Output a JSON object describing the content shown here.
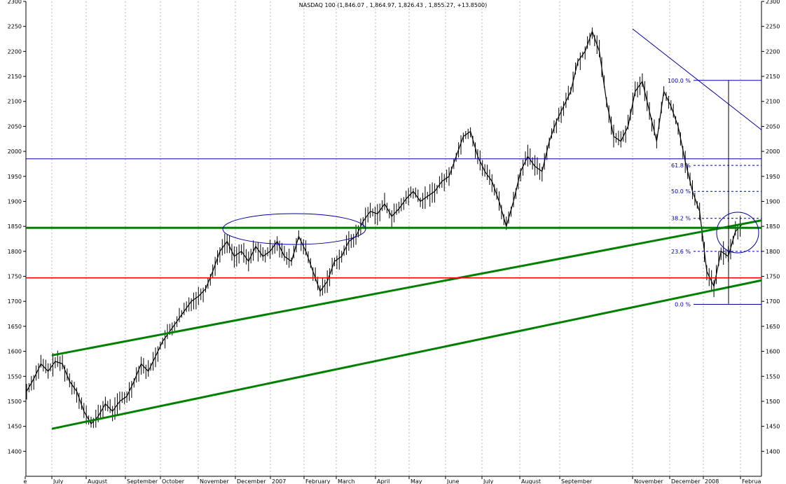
{
  "chart_data": {
    "type": "line",
    "title": "NASDAQ 100 (1,846.07 , 1,864.97, 1,826.43 , 1,855.27, +13.8500)",
    "xlabel": "",
    "ylabel": "",
    "ylim": [
      1350,
      2300
    ],
    "grid": true,
    "y_ticks": [
      1400,
      1450,
      1500,
      1550,
      1600,
      1650,
      1700,
      1750,
      1800,
      1850,
      1900,
      1950,
      2000,
      2050,
      2100,
      2150,
      2200,
      2250,
      2300
    ],
    "x_ticks": [
      "e",
      "July",
      "August",
      "September",
      "October",
      "November",
      "December",
      "2007",
      "February",
      "March",
      "April",
      "May",
      "June",
      "July",
      "August",
      "September",
      "November",
      "December",
      "2008",
      "Februa"
    ],
    "series": [
      {
        "values": [
          1520,
          1545,
          1575,
          1560,
          1580,
          1575,
          1540,
          1520,
          1480,
          1455,
          1470,
          1495,
          1480,
          1500,
          1510,
          1540,
          1575,
          1560,
          1590,
          1620,
          1640,
          1660,
          1680,
          1700,
          1710,
          1725,
          1760,
          1800,
          1820,
          1790,
          1800,
          1780,
          1810,
          1790,
          1800,
          1820,
          1790,
          1780,
          1830,
          1800,
          1760,
          1720,
          1740,
          1780,
          1790,
          1820,
          1830,
          1860,
          1880,
          1875,
          1895,
          1870,
          1885,
          1905,
          1920,
          1900,
          1910,
          1920,
          1940,
          1950,
          1990,
          2030,
          2040,
          1990,
          1960,
          1940,
          1900,
          1850,
          1900,
          1960,
          1990,
          1970,
          1960,
          2020,
          2060,
          2090,
          2120,
          2180,
          2200,
          2240,
          2200,
          2100,
          2030,
          2020,
          2050,
          2120,
          2140,
          2080,
          2020,
          2120,
          2090,
          2050,
          1980,
          1920,
          1880,
          1760,
          1730,
          1800,
          1790,
          1840,
          1855
        ]
      }
    ],
    "trend_lines": [
      {
        "color": "#008000",
        "from": {
          "x": "July 2006",
          "y": 1592
        },
        "to": {
          "x": "February 2008",
          "y": 1862
        }
      },
      {
        "color": "#008000",
        "from": {
          "x": "July 2006",
          "y": 1445
        },
        "to": {
          "x": "February 2008",
          "y": 1742
        }
      },
      {
        "color": "#008000",
        "y": 1847
      },
      {
        "color": "#ff0000",
        "y": 1747
      },
      {
        "color": "#0000a0",
        "y": 1985
      },
      {
        "color": "#0000a0",
        "from": {
          "x": "November 2007",
          "y": 2245
        },
        "to": {
          "x": "February 2008",
          "y": 2043
        }
      }
    ],
    "fibonacci": {
      "levels": [
        {
          "label": "100.0 %",
          "y": 2142
        },
        {
          "label": "61.8 %",
          "y": 1972
        },
        {
          "label": "50.0 %",
          "y": 1920
        },
        {
          "label": "38.2 %",
          "y": 1866
        },
        {
          "label": "23.6 %",
          "y": 1800
        },
        {
          "label": "0.0 %",
          "y": 1694
        }
      ]
    }
  },
  "colors": {
    "price": "#000000",
    "trend_green": "#008000",
    "support_red": "#ff0000",
    "annotation_blue": "#0000a0",
    "grid": "#b8b8b8"
  }
}
